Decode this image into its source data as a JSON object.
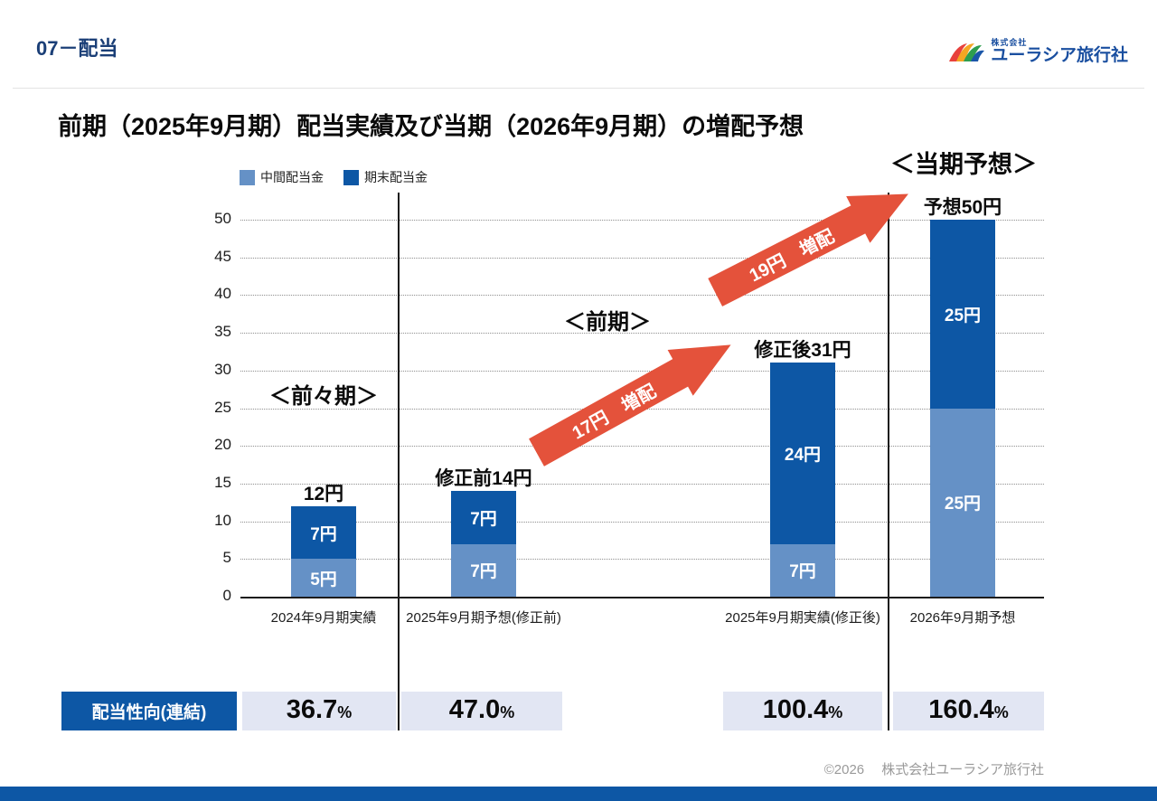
{
  "header": {
    "section": "07－配当",
    "logo": {
      "company_small": "株式会社",
      "company_name": "ユーラシア旅行社"
    }
  },
  "title": "前期（2025年9月期）配当実績及び当期（2026年9月期）の増配予想",
  "legend": [
    {
      "label": "中間配当金",
      "color": "#6591c6"
    },
    {
      "label": "期末配当金",
      "color": "#0d57a5"
    }
  ],
  "chart_data": {
    "type": "bar",
    "stacked": true,
    "categories": [
      "2024年9月期実績",
      "2025年9月期予想(修正前)",
      "2025年9月期実績(修正後)",
      "2026年9月期予想"
    ],
    "series": [
      {
        "name": "中間配当金",
        "color": "#6591c6",
        "values": [
          5,
          7,
          7,
          25
        ]
      },
      {
        "name": "期末配当金",
        "color": "#0d57a5",
        "values": [
          7,
          7,
          24,
          25
        ]
      }
    ],
    "segment_labels": [
      [
        "5円",
        "7円"
      ],
      [
        "7円",
        "7円"
      ],
      [
        "7円",
        "24円"
      ],
      [
        "25円",
        "25円"
      ]
    ],
    "total_labels": [
      "12円",
      "修正前14円",
      "修正後31円",
      "予想50円"
    ],
    "ylim": [
      0,
      50
    ],
    "yticks": [
      0,
      5,
      10,
      15,
      20,
      25,
      30,
      35,
      40,
      45,
      50
    ],
    "grid": "dotted",
    "legend_position": "top-left",
    "unit": "円"
  },
  "annotations": {
    "period_prev2": "＜前々期＞",
    "period_prev": "＜前期＞",
    "period_current": "＜当期予想＞",
    "arrows": [
      {
        "label": "17円　増配"
      },
      {
        "label": "19円　増配"
      }
    ]
  },
  "table": {
    "row_label": "配当性向(連結)",
    "values": [
      "36.7",
      "47.0",
      "100.4",
      "160.4"
    ],
    "unit": "%"
  },
  "footer": {
    "copyright": "©2026　 株式会社ユーラシア旅行社"
  }
}
